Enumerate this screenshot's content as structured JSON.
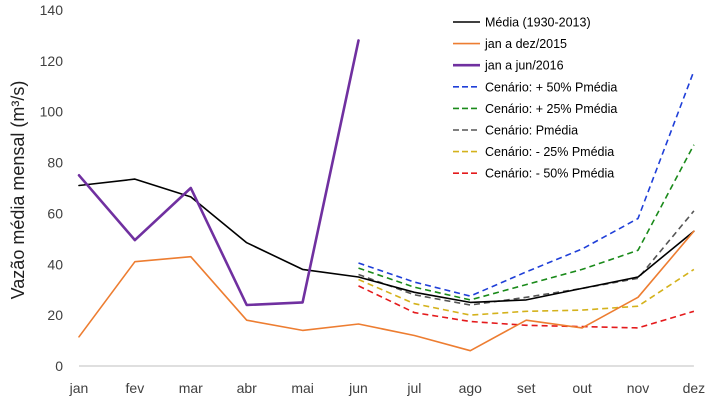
{
  "chart_data": {
    "type": "line",
    "title": "",
    "xlabel": "",
    "ylabel": "Vazão média mensal",
    "ylabel_unit": "(m³/s)",
    "ylim": [
      0,
      140
    ],
    "yticks": [
      0,
      20,
      40,
      60,
      80,
      100,
      120,
      140
    ],
    "categories": [
      "jan",
      "fev",
      "mar",
      "abr",
      "mai",
      "jun",
      "jul",
      "ago",
      "set",
      "out",
      "nov",
      "dez"
    ],
    "legend_position": "top-right",
    "series": [
      {
        "name": "Média (1930-2013)",
        "color": "#000000",
        "dash": "solid",
        "width": 1.6,
        "values": [
          71,
          73.5,
          66.5,
          48.5,
          38,
          35,
          29,
          25,
          26,
          30.5,
          35,
          53
        ]
      },
      {
        "name": "jan a dez/2015",
        "color": "#ED7D31",
        "dash": "solid",
        "width": 1.6,
        "values": [
          11.5,
          41,
          43,
          18,
          14,
          16.5,
          12,
          6,
          18,
          15,
          27,
          53
        ]
      },
      {
        "name": "jan a jun/2016",
        "color": "#7030A0",
        "dash": "solid",
        "width": 2.6,
        "values": [
          75,
          49.5,
          70,
          24,
          25,
          128,
          null,
          null,
          null,
          null,
          null,
          null
        ]
      },
      {
        "name": "Cenário: + 50% Pmédia",
        "color": "#1F3FD8",
        "dash": "dashed",
        "width": 1.6,
        "values": [
          null,
          null,
          null,
          null,
          null,
          40.5,
          33,
          27.5,
          37,
          46,
          58,
          116
        ]
      },
      {
        "name": "Cenário: + 25% Pmédia",
        "color": "#1A8A1A",
        "dash": "dashed",
        "width": 1.6,
        "values": [
          null,
          null,
          null,
          null,
          null,
          38.5,
          31,
          26,
          32,
          38,
          45.5,
          87
        ]
      },
      {
        "name": "Cenário: Pmédia",
        "color": "#555555",
        "dash": "dashed",
        "width": 1.6,
        "values": [
          null,
          null,
          null,
          null,
          null,
          36,
          28,
          24,
          27,
          30.5,
          34.5,
          61
        ]
      },
      {
        "name": "Cenário: - 25% Pmédia",
        "color": "#D4B21C",
        "dash": "dashed",
        "width": 1.6,
        "values": [
          null,
          null,
          null,
          null,
          null,
          34,
          24.5,
          20,
          21.5,
          22,
          23.5,
          38
        ]
      },
      {
        "name": "Cenário: - 50% Pmédia",
        "color": "#E41A1C",
        "dash": "dashed",
        "width": 1.6,
        "values": [
          null,
          null,
          null,
          null,
          null,
          31.5,
          21,
          17.5,
          16,
          15.5,
          15,
          21.5
        ]
      }
    ]
  }
}
